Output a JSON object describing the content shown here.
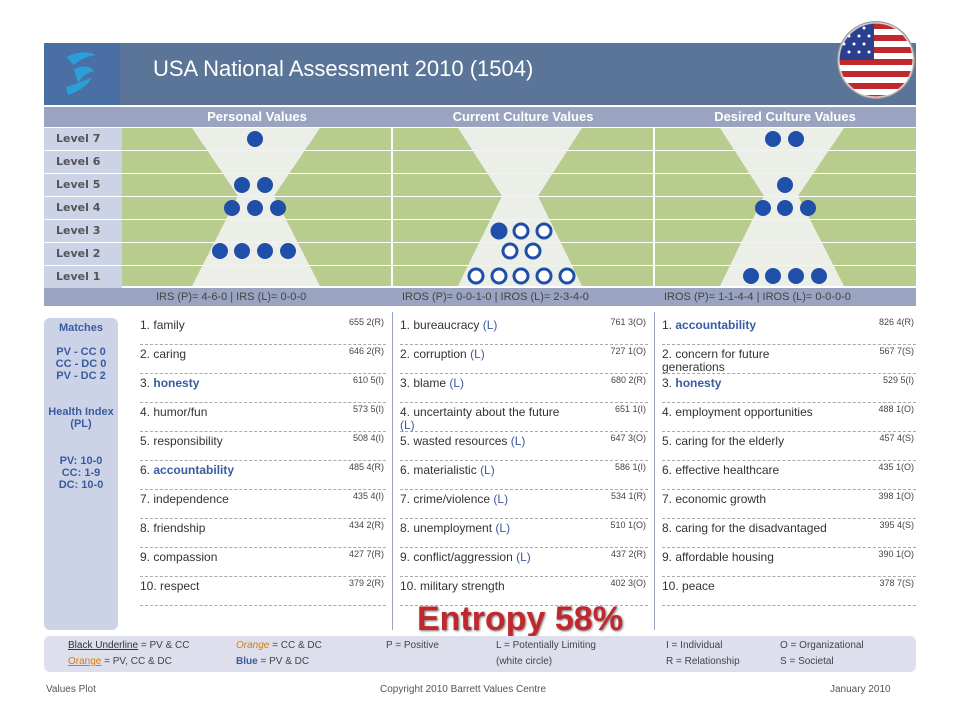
{
  "header": {
    "title": "USA National Assessment 2010 (1504)"
  },
  "columns": {
    "personal": "Personal Values",
    "current": "Current Culture Values",
    "desired": "Desired Culture Values"
  },
  "levels": [
    "Level 7",
    "Level 6",
    "Level 5",
    "Level 4",
    "Level 3",
    "Level 2",
    "Level 1"
  ],
  "irs": {
    "personal": "IRS (P)= 4-6-0 | IRS (L)= 0-0-0",
    "current": "IROS (P)= 0-0-1-0 | IROS (L)= 2-3-4-0",
    "desired": "IROS (P)= 1-1-4-4 | IROS (L)= 0-0-0-0"
  },
  "matches": {
    "title": "Matches",
    "lines": [
      "PV - CC 0",
      "CC - DC 0",
      "PV - DC 2"
    ],
    "health_title": "Health Index (PL)",
    "health_lines": [
      "PV: 10-0",
      "CC: 1-9",
      "DC: 10-0"
    ]
  },
  "personal_values": [
    {
      "num": "1.",
      "name": "family",
      "score": "655",
      "code": "2(R)",
      "style": "plain"
    },
    {
      "num": "2.",
      "name": "caring",
      "score": "646",
      "code": "2(R)",
      "style": "plain"
    },
    {
      "num": "3.",
      "name": "honesty",
      "score": "610",
      "code": "5(I)",
      "style": "blue"
    },
    {
      "num": "4.",
      "name": "humor/fun",
      "score": "573",
      "code": "5(I)",
      "style": "plain"
    },
    {
      "num": "5.",
      "name": "responsibility",
      "score": "508",
      "code": "4(I)",
      "style": "plain"
    },
    {
      "num": "6.",
      "name": "accountability",
      "score": "485",
      "code": "4(R)",
      "style": "blue"
    },
    {
      "num": "7.",
      "name": "independence",
      "score": "435",
      "code": "4(I)",
      "style": "plain"
    },
    {
      "num": "8.",
      "name": "friendship",
      "score": "434",
      "code": "2(R)",
      "style": "plain"
    },
    {
      "num": "9.",
      "name": "compassion",
      "score": "427",
      "code": "7(R)",
      "style": "plain"
    },
    {
      "num": "10.",
      "name": "respect",
      "score": "379",
      "code": "2(R)",
      "style": "plain"
    }
  ],
  "current_values": [
    {
      "num": "1.",
      "name": "bureaucracy",
      "lim": "(L)",
      "score": "761",
      "code": "3(O)"
    },
    {
      "num": "2.",
      "name": "corruption",
      "lim": "(L)",
      "score": "727",
      "code": "1(O)"
    },
    {
      "num": "3.",
      "name": "blame",
      "lim": "(L)",
      "score": "680",
      "code": "2(R)"
    },
    {
      "num": "4.",
      "name": "uncertainty about the future",
      "lim": "(L)",
      "score": "651",
      "code": "1(I)"
    },
    {
      "num": "5.",
      "name": "wasted resources",
      "lim": "(L)",
      "score": "647",
      "code": "3(O)"
    },
    {
      "num": "6.",
      "name": "materialistic",
      "lim": "(L)",
      "score": "586",
      "code": "1(I)"
    },
    {
      "num": "7.",
      "name": "crime/violence",
      "lim": "(L)",
      "score": "534",
      "code": "1(R)"
    },
    {
      "num": "8.",
      "name": "unemployment",
      "lim": "(L)",
      "score": "510",
      "code": "1(O)"
    },
    {
      "num": "9.",
      "name": "conflict/aggression",
      "lim": "(L)",
      "score": "437",
      "code": "2(R)"
    },
    {
      "num": "10.",
      "name": "military strength",
      "lim": "",
      "score": "402",
      "code": "3(O)"
    }
  ],
  "desired_values": [
    {
      "num": "1.",
      "name": "accountability",
      "score": "826",
      "code": "4(R)",
      "style": "blue"
    },
    {
      "num": "2.",
      "name": "concern for future generations",
      "score": "567",
      "code": "7(S)",
      "style": "plain"
    },
    {
      "num": "3.",
      "name": "honesty",
      "score": "529",
      "code": "5(I)",
      "style": "blue"
    },
    {
      "num": "4.",
      "name": "employment opportunities",
      "score": "488",
      "code": "1(O)",
      "style": "plain"
    },
    {
      "num": "5.",
      "name": "caring for the elderly",
      "score": "457",
      "code": "4(S)",
      "style": "plain"
    },
    {
      "num": "6.",
      "name": "effective healthcare",
      "score": "435",
      "code": "1(O)",
      "style": "plain"
    },
    {
      "num": "7.",
      "name": "economic growth",
      "score": "398",
      "code": "1(O)",
      "style": "plain"
    },
    {
      "num": "8.",
      "name": "caring for the disadvantaged",
      "score": "395",
      "code": "4(S)",
      "style": "plain"
    },
    {
      "num": "9.",
      "name": "affordable housing",
      "score": "390",
      "code": "1(O)",
      "style": "plain"
    },
    {
      "num": "10.",
      "name": "peace",
      "score": "378",
      "code": "7(S)",
      "style": "plain"
    }
  ],
  "entropy": "Entropy 58%",
  "legend": {
    "black_underline": "Black Underline",
    "black_underline_rest": "= PV & CC",
    "orange1": "Orange",
    "orange1_rest": "= CC & DC",
    "positive": "P = Positive",
    "limiting": "L = Potentially Limiting",
    "white_circle": "(white circle)",
    "individual": "I = Individual",
    "organizational": "O = Organizational",
    "orange2": "Orange",
    "orange2_rest": "= PV, CC & DC",
    "blue": "Blue",
    "blue_rest": "= PV & DC",
    "relationship": "R = Relationship",
    "societal": "S = Societal"
  },
  "footer": {
    "left": "Values Plot",
    "center": "Copyright 2010 Barrett Values Centre",
    "right": "January 2010"
  },
  "dots": {
    "personal": [
      0,
      0,
      0,
      0,
      0,
      0,
      0,
      0,
      0,
      0
    ],
    "current_filled_levels": [
      1,
      2
    ],
    "colors": {
      "filled": "#1f4fa8",
      "limiting": "#ffffff"
    }
  }
}
